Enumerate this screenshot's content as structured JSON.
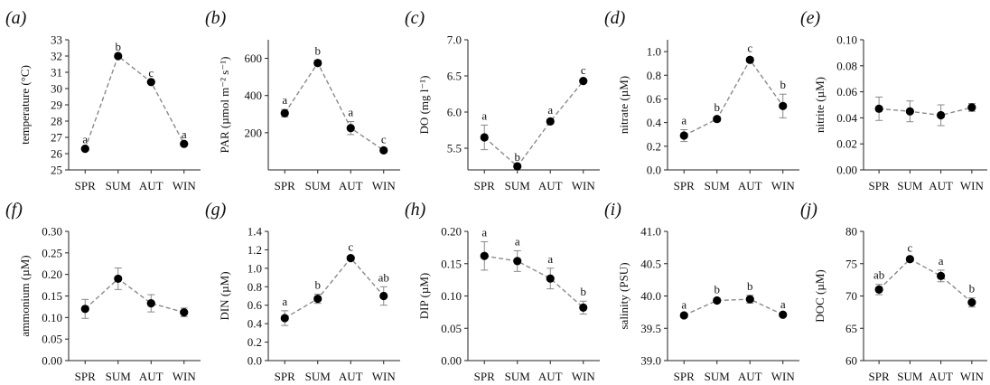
{
  "chart_data": [
    {
      "type": "line",
      "panel": "(a)",
      "ylabel": "temperature (°C)",
      "ylim": [
        25,
        33
      ],
      "yticks": [
        25,
        26,
        27,
        28,
        29,
        30,
        31,
        32,
        33
      ],
      "categories": [
        "SPR",
        "SUM",
        "AUT",
        "WIN"
      ],
      "series": [
        {
          "values": [
            26.3,
            32.0,
            30.4,
            26.6
          ],
          "errors": [
            0,
            0,
            0,
            0
          ],
          "labels": [
            "a",
            "b",
            "c",
            "a"
          ]
        }
      ]
    },
    {
      "type": "line",
      "panel": "(b)",
      "ylabel": "PAR (µmol m⁻² s⁻¹)",
      "ylim": [
        0,
        700
      ],
      "yticks": [
        200,
        400,
        600
      ],
      "categories": [
        "SPR",
        "SUM",
        "AUT",
        "WIN"
      ],
      "series": [
        {
          "values": [
            305,
            575,
            225,
            105
          ],
          "errors": [
            20,
            15,
            35,
            10
          ],
          "labels": [
            "a",
            "b",
            "a",
            "c"
          ]
        }
      ]
    },
    {
      "type": "line",
      "panel": "(c)",
      "ylabel": "DO (mg l⁻¹)",
      "ylim": [
        5.2,
        7.0
      ],
      "yticks": [
        5.5,
        6.0,
        6.5,
        7.0
      ],
      "categories": [
        "SPR",
        "SUM",
        "AUT",
        "WIN"
      ],
      "series": [
        {
          "values": [
            5.65,
            5.25,
            5.87,
            6.43
          ],
          "errors": [
            0.17,
            0.0,
            0.03,
            0.02
          ],
          "labels": [
            "a",
            "b",
            "a",
            "c"
          ]
        }
      ]
    },
    {
      "type": "line",
      "panel": "(d)",
      "ylabel": "nitrate (µM)",
      "ylim": [
        0,
        1.1
      ],
      "yticks": [
        0,
        0.2,
        0.4,
        0.6,
        0.8,
        1.0
      ],
      "categories": [
        "SPR",
        "SUM",
        "AUT",
        "WIN"
      ],
      "series": [
        {
          "values": [
            0.29,
            0.43,
            0.93,
            0.54
          ],
          "errors": [
            0.05,
            0.02,
            0.02,
            0.1
          ],
          "labels": [
            "a",
            "b",
            "c",
            "b"
          ]
        }
      ]
    },
    {
      "type": "line",
      "panel": "(e)",
      "ylabel": "nitrite (µM)",
      "ylim": [
        0,
        0.1
      ],
      "yticks": [
        0,
        0.02,
        0.04,
        0.06,
        0.08,
        0.1
      ],
      "categories": [
        "SPR",
        "SUM",
        "AUT",
        "WIN"
      ],
      "series": [
        {
          "values": [
            0.047,
            0.045,
            0.042,
            0.048
          ],
          "errors": [
            0.009,
            0.008,
            0.008,
            0.003
          ],
          "labels": [
            "",
            "",
            "",
            ""
          ]
        }
      ]
    },
    {
      "type": "line",
      "panel": "(f)",
      "ylabel": "ammonium (µM)",
      "ylim": [
        0,
        0.3
      ],
      "yticks": [
        0,
        0.05,
        0.1,
        0.15,
        0.2,
        0.25,
        0.3
      ],
      "categories": [
        "SPR",
        "SUM",
        "AUT",
        "WIN"
      ],
      "series": [
        {
          "values": [
            0.12,
            0.19,
            0.133,
            0.112
          ],
          "errors": [
            0.022,
            0.025,
            0.02,
            0.01
          ],
          "labels": [
            "",
            "",
            "",
            ""
          ]
        }
      ]
    },
    {
      "type": "line",
      "panel": "(g)",
      "ylabel": "DIN (µM)",
      "ylim": [
        0,
        1.4
      ],
      "yticks": [
        0,
        0.2,
        0.4,
        0.6,
        0.8,
        1.0,
        1.2,
        1.4
      ],
      "categories": [
        "SPR",
        "SUM",
        "AUT",
        "WIN"
      ],
      "series": [
        {
          "values": [
            0.46,
            0.67,
            1.11,
            0.7
          ],
          "errors": [
            0.08,
            0.05,
            0.02,
            0.1
          ],
          "labels": [
            "a",
            "b",
            "c",
            "ab"
          ]
        }
      ]
    },
    {
      "type": "line",
      "panel": "(h)",
      "ylabel": "DIP (µM)",
      "ylim": [
        0,
        0.2
      ],
      "yticks": [
        0,
        0.05,
        0.1,
        0.15,
        0.2
      ],
      "categories": [
        "SPR",
        "SUM",
        "AUT",
        "WIN"
      ],
      "series": [
        {
          "values": [
            0.162,
            0.154,
            0.127,
            0.082
          ],
          "errors": [
            0.022,
            0.016,
            0.016,
            0.01
          ],
          "labels": [
            "a",
            "a",
            "a",
            "b"
          ]
        }
      ]
    },
    {
      "type": "line",
      "panel": "(i)",
      "ylabel": "salinity (PSU)",
      "ylim": [
        39.0,
        41.0
      ],
      "yticks": [
        39.0,
        39.5,
        40.0,
        40.5,
        41.0
      ],
      "categories": [
        "SPR",
        "SUM",
        "AUT",
        "WIN"
      ],
      "series": [
        {
          "values": [
            39.7,
            39.93,
            39.95,
            39.71
          ],
          "errors": [
            0.02,
            0.03,
            0.06,
            0.02
          ],
          "labels": [
            "a",
            "b",
            "b",
            "a"
          ]
        }
      ]
    },
    {
      "type": "line",
      "panel": "(j)",
      "ylabel": "DOC (µM)",
      "ylim": [
        60,
        80
      ],
      "yticks": [
        60,
        65,
        70,
        75,
        80
      ],
      "categories": [
        "SPR",
        "SUM",
        "AUT",
        "WIN"
      ],
      "series": [
        {
          "values": [
            71.0,
            75.7,
            73.1,
            69.0
          ],
          "errors": [
            0.8,
            0.3,
            0.9,
            0.7
          ],
          "labels": [
            "ab",
            "c",
            "a",
            "b"
          ]
        }
      ]
    }
  ]
}
